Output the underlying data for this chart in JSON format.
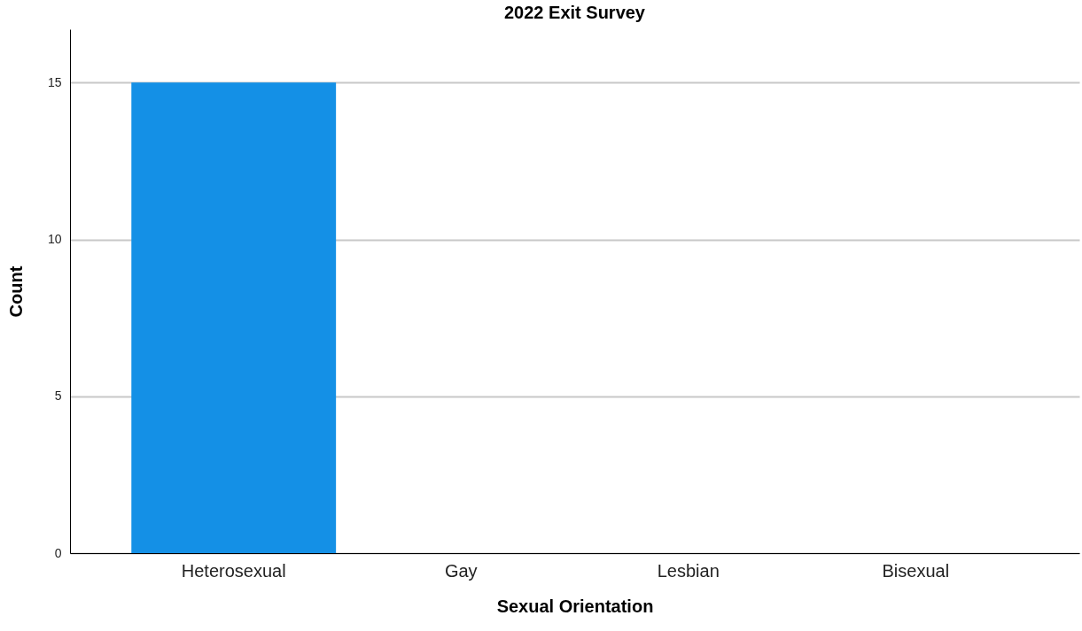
{
  "chart_data": {
    "type": "bar",
    "title": "2022 Exit Survey",
    "xlabel": "Sexual Orientation",
    "ylabel": "Count",
    "categories": [
      "Heterosexual",
      "Gay",
      "Lesbian",
      "Bisexual"
    ],
    "values": [
      15,
      0,
      0,
      0
    ],
    "color": "#1490e6",
    "ylim": [
      0,
      16.7
    ],
    "yticks": [
      0,
      5,
      10,
      15
    ],
    "grid": "y"
  }
}
